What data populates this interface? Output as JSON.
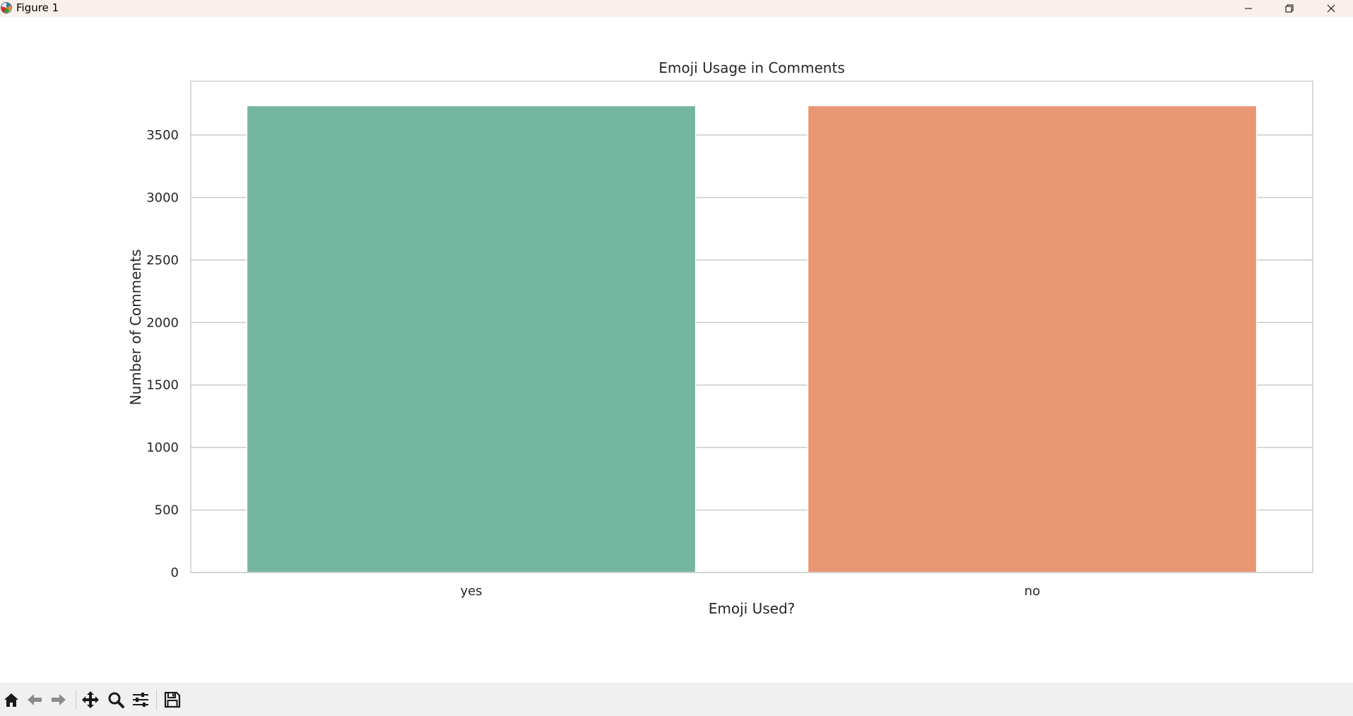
{
  "window": {
    "title": "Figure 1",
    "controls": [
      "minimize",
      "restore",
      "close"
    ]
  },
  "toolbar": {
    "tools": [
      {
        "name": "home-button",
        "icon": "home-icon"
      },
      {
        "name": "back-button",
        "icon": "arrow-left-icon"
      },
      {
        "name": "forward-button",
        "icon": "arrow-right-icon"
      },
      {
        "name": "pan-button",
        "icon": "move-icon"
      },
      {
        "name": "zoom-button",
        "icon": "magnifier-icon"
      },
      {
        "name": "configure-subplots-button",
        "icon": "sliders-icon"
      },
      {
        "name": "save-button",
        "icon": "floppy-disk-icon"
      }
    ]
  },
  "chart_data": {
    "type": "bar",
    "title": "Emoji Usage in Comments",
    "xlabel": "Emoji Used?",
    "ylabel": "Number of Comments",
    "categories": [
      "yes",
      "no"
    ],
    "values": [
      3735,
      3735
    ],
    "colors": [
      "#74b5a0",
      "#e89673"
    ],
    "ylim": [
      0,
      3930
    ],
    "yticks": [
      0,
      500,
      1000,
      1500,
      2000,
      2500,
      3000,
      3500
    ],
    "grid": "horizontal",
    "legend": "none"
  }
}
